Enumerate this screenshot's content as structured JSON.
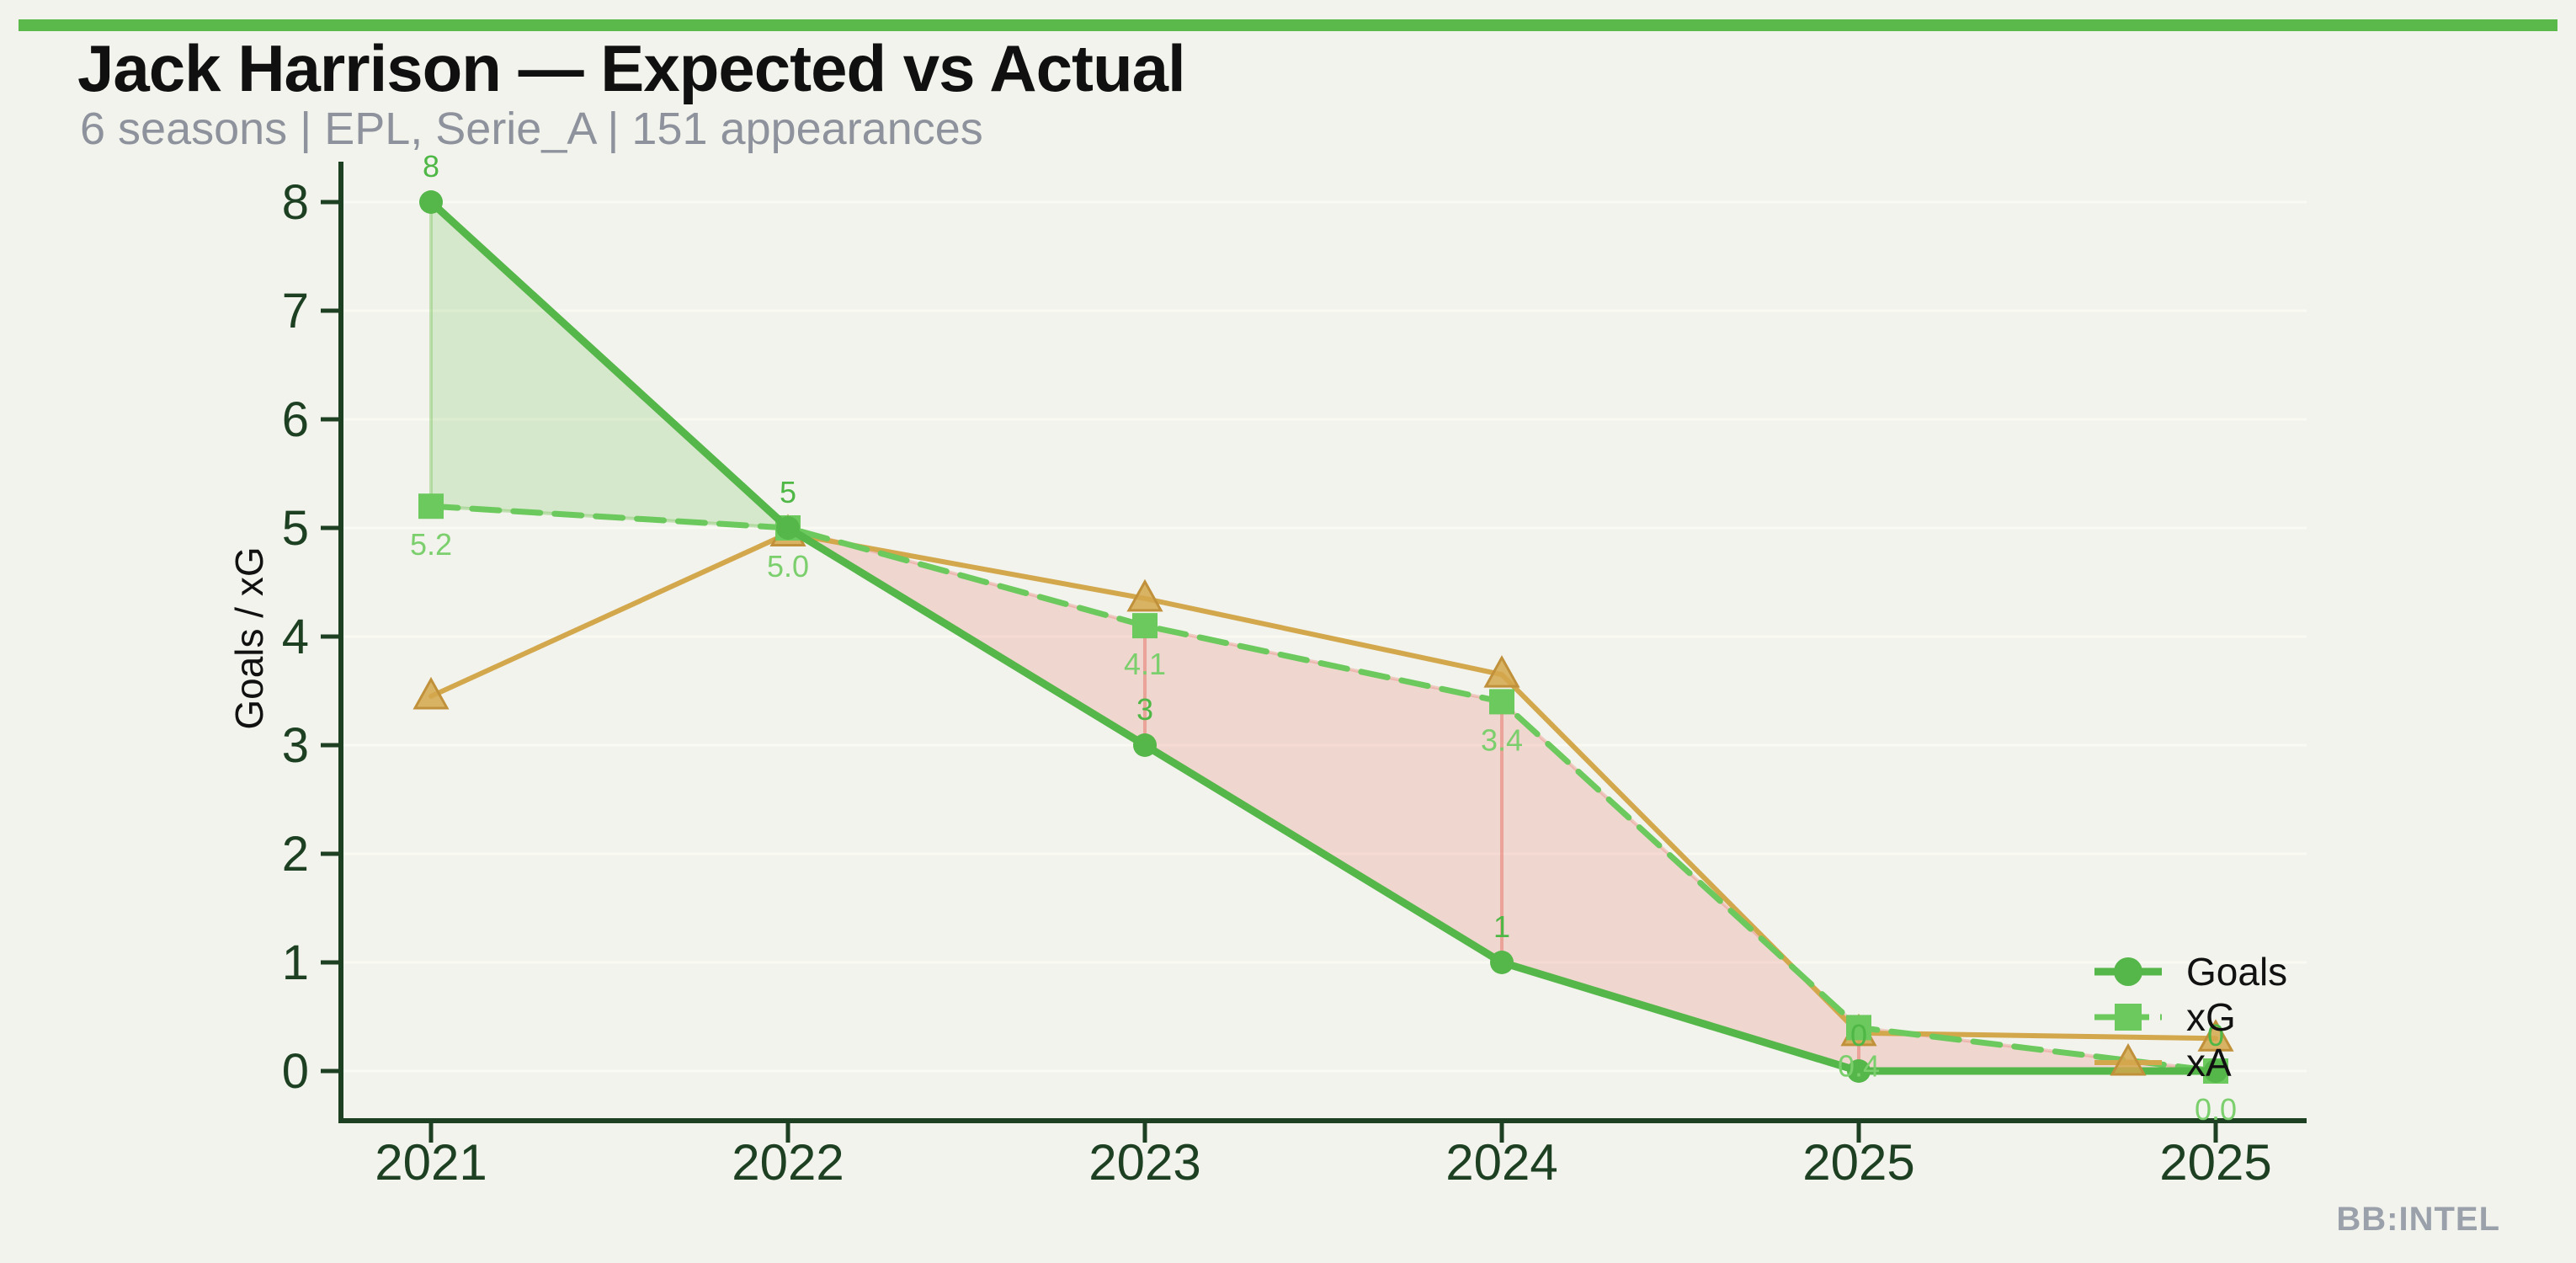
{
  "header": {
    "title": "Jack Harrison — Expected vs Actual",
    "subtitle": "6 seasons | EPL, Serie_A | 151 appearances"
  },
  "watermark": "BB:INTEL",
  "chart_data": {
    "type": "line",
    "title": "Jack Harrison — Expected vs Actual",
    "subtitle": "6 seasons | EPL, Serie_A | 151 appearances",
    "categories": [
      "2021",
      "2022",
      "2023",
      "2024",
      "2025",
      "2025"
    ],
    "series": [
      {
        "name": "Goals",
        "marker": "circle",
        "line": "solid",
        "values": [
          8,
          5,
          3,
          1,
          0,
          0
        ],
        "point_labels": [
          "8",
          "5",
          "3",
          "1",
          "0",
          "0"
        ],
        "color": "#55b649",
        "label_color": "#4eb746"
      },
      {
        "name": "xG",
        "marker": "square",
        "line": "dashed",
        "values": [
          5.2,
          5.0,
          4.1,
          3.4,
          0.4,
          0.0
        ],
        "point_labels": [
          "5.2",
          "5.0",
          "4.1",
          "3.4",
          "0.4",
          "0.0"
        ],
        "color": "#6cc95d",
        "label_color": "#7bcf6d"
      },
      {
        "name": "xA",
        "marker": "triangle",
        "line": "solid",
        "values": [
          3.45,
          4.95,
          4.35,
          3.65,
          0.35,
          0.3
        ],
        "point_labels": null,
        "color": "#d3a74c",
        "label_color": "#d3a74c"
      }
    ],
    "ylabel": "Goals / xG",
    "xlabel": "",
    "yticks": [
      0,
      1,
      2,
      3,
      4,
      5,
      6,
      7,
      8
    ],
    "ylim": [
      -0.45,
      8.4
    ],
    "grid": "horizontal-faint",
    "legend": [
      "Goals",
      "xG",
      "xA"
    ],
    "legend_position": "right-lower",
    "fill_between": {
      "above_series": "Goals",
      "below_series": "xG",
      "over_color": "rgba(130,200,105,0.25)",
      "under_color": "rgba(231,126,116,0.25)"
    }
  },
  "style": {
    "background": "#f2f3ec",
    "accent_bar": "#5bb84a",
    "axis_color": "#1d4022",
    "grid_color": "#fafaf3",
    "title_color": "#101010",
    "subtitle_color": "#8d929c",
    "watermark_color": "#9aa1ab",
    "legend_text_color": "#111111"
  }
}
